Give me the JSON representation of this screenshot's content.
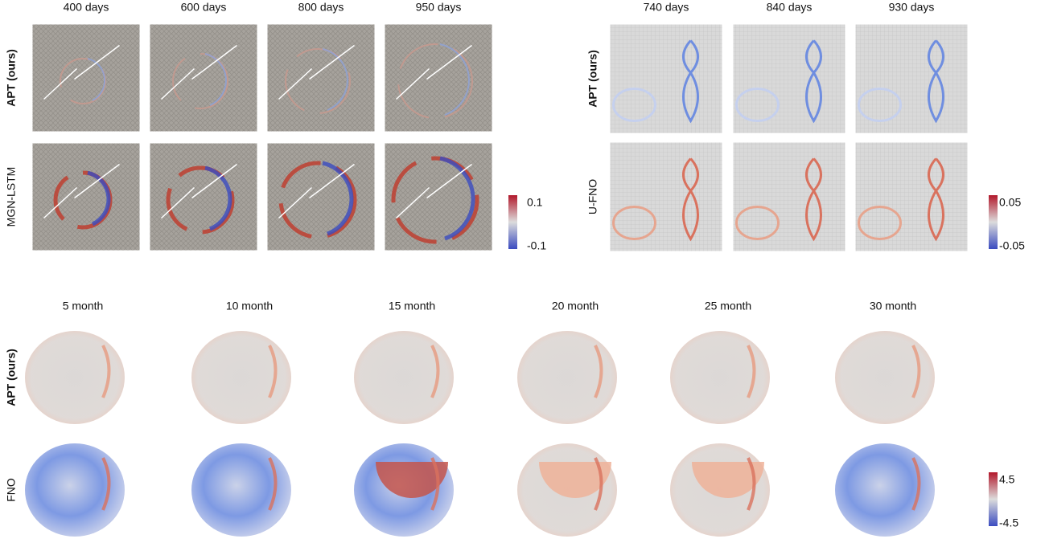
{
  "panels": [
    {
      "columns": [
        "400 days",
        "600 days",
        "800 days",
        "950 days"
      ],
      "rows": [
        "APT (ours)",
        "MGN-LSTM"
      ],
      "colorbar": [
        "0.1",
        "-0.1"
      ]
    },
    {
      "columns": [
        "740 days",
        "840 days",
        "930 days"
      ],
      "rows": [
        "APT (ours)",
        "U-FNO"
      ],
      "colorbar": [
        "0.05",
        "-0.05"
      ]
    },
    {
      "columns": [
        "5 month",
        "10 month",
        "15 month",
        "20 month",
        "25 month",
        "30 month"
      ],
      "rows": [
        "APT (ours)",
        "FNO"
      ],
      "colorbar": [
        "4.5",
        "-4.5"
      ]
    }
  ]
}
